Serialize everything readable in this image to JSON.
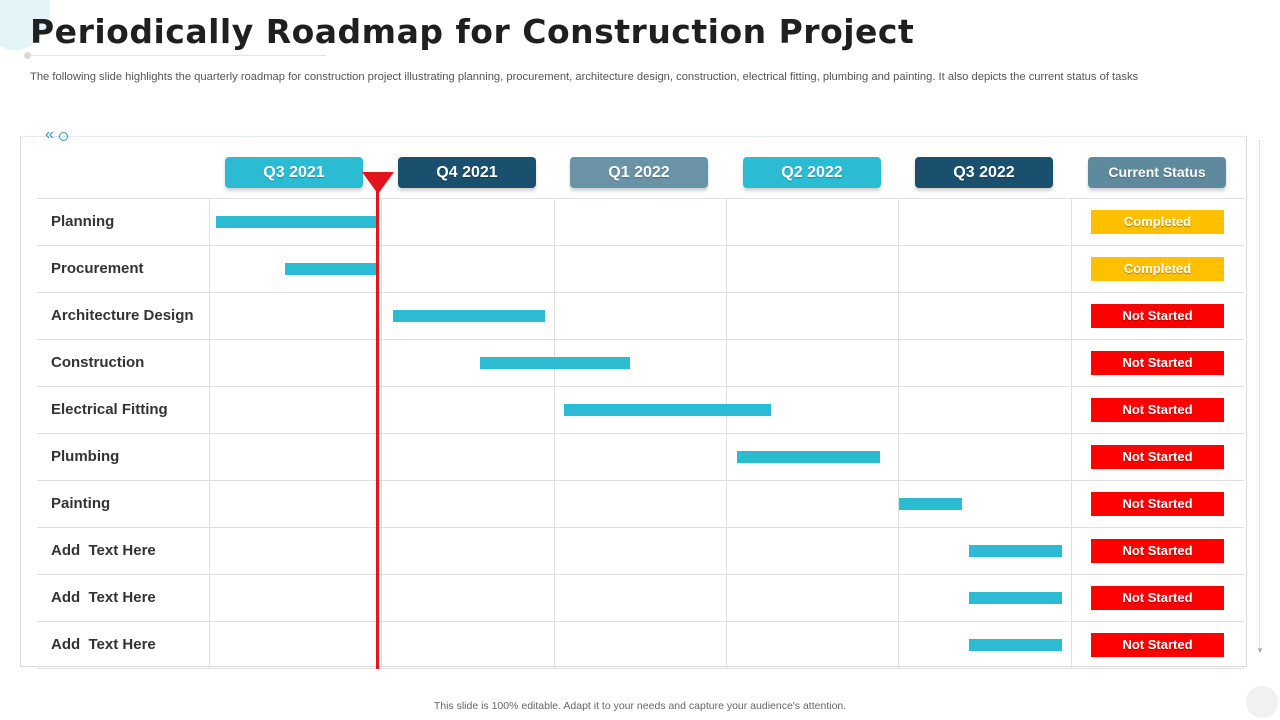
{
  "title": "Periodically Roadmap for Construction Project",
  "subtitle": "The following slide highlights the quarterly roadmap for construction project illustrating planning, procurement, architecture design, construction, electrical fitting, plumbing and painting. It also depicts the current status of tasks",
  "footer": "This slide is 100% editable. Adapt it to your needs and capture your audience's attention.",
  "colors": {
    "bar": "#2bbcd4",
    "completed": "#ffc000",
    "not_started": "#ff0000",
    "marker": "#e3141c"
  },
  "columns": [
    {
      "label": "Q3 2021",
      "color": "#2bbcd4"
    },
    {
      "label": "Q4 2021",
      "color": "#1a4f6e"
    },
    {
      "label": "Q1 2022",
      "color": "#6a93a6"
    },
    {
      "label": "Q2 2022",
      "color": "#2bbcd4"
    },
    {
      "label": "Q3 2022",
      "color": "#1a4f6e"
    },
    {
      "label": "Current Status",
      "color": "#5f8a9e"
    }
  ],
  "timeline": {
    "quarters": 5,
    "current_position": 0.98
  },
  "tasks": [
    {
      "label": "Planning",
      "start": 0.04,
      "end": 0.98,
      "status": "Completed"
    },
    {
      "label": "Procurement",
      "start": 0.44,
      "end": 0.98,
      "status": "Completed"
    },
    {
      "label": "Architecture Design",
      "start": 1.07,
      "end": 1.95,
      "status": "Not Started"
    },
    {
      "label": "Construction",
      "start": 1.57,
      "end": 2.44,
      "status": "Not Started"
    },
    {
      "label": "Electrical Fitting",
      "start": 2.06,
      "end": 3.26,
      "status": "Not Started"
    },
    {
      "label": "Plumbing",
      "start": 3.06,
      "end": 3.89,
      "status": "Not Started"
    },
    {
      "label": "Painting",
      "start": 4.0,
      "end": 4.37,
      "status": "Not Started"
    },
    {
      "label": "Add  Text Here",
      "start": 4.41,
      "end": 4.95,
      "status": "Not Started"
    },
    {
      "label": "Add  Text Here",
      "start": 4.41,
      "end": 4.95,
      "status": "Not Started"
    },
    {
      "label": "Add  Text Here",
      "start": 4.41,
      "end": 4.95,
      "status": "Not Started"
    }
  ]
}
